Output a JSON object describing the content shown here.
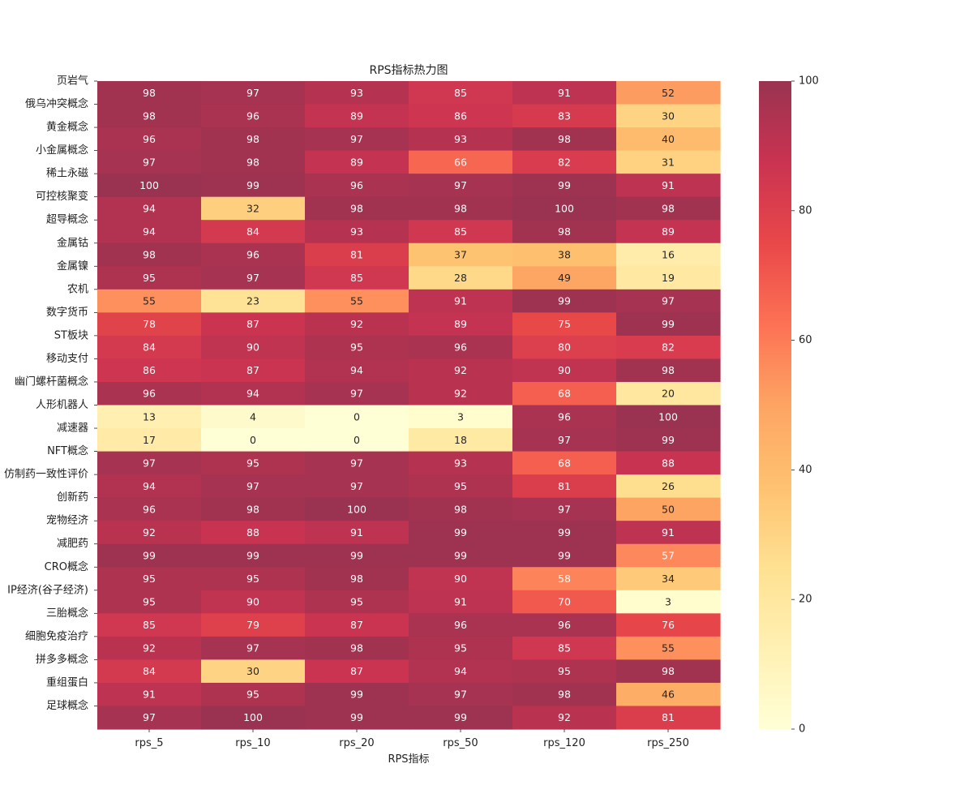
{
  "chart_data": {
    "type": "heatmap",
    "title": "RPS指标热力图",
    "xlabel": "RPS指标",
    "ylabel": "",
    "x_categories": [
      "rps_5",
      "rps_10",
      "rps_20",
      "rps_50",
      "rps_120",
      "rps_250"
    ],
    "y_categories": [
      "页岩气",
      "俄乌冲突概念",
      "黄金概念",
      "小金属概念",
      "稀土永磁",
      "可控核聚变",
      "超导概念",
      "金属钴",
      "金属镍",
      "农机",
      "数字货币",
      "ST板块",
      "移动支付",
      "幽门螺杆菌概念",
      "人形机器人",
      "减速器",
      "NFT概念",
      "仿制药一致性评价",
      "创新药",
      "宠物经济",
      "减肥药",
      "CRO概念",
      "IP经济(谷子经济)",
      "三胎概念",
      "细胞免疫治疗",
      "拼多多概念",
      "重组蛋白",
      "足球概念"
    ],
    "values": [
      [
        98,
        97,
        93,
        85,
        91,
        52
      ],
      [
        98,
        96,
        89,
        86,
        83,
        30
      ],
      [
        96,
        98,
        97,
        93,
        98,
        40
      ],
      [
        97,
        98,
        89,
        66,
        82,
        31
      ],
      [
        100,
        99,
        96,
        97,
        99,
        91
      ],
      [
        94,
        32,
        98,
        98,
        100,
        98
      ],
      [
        94,
        84,
        93,
        85,
        98,
        89
      ],
      [
        98,
        96,
        81,
        37,
        38,
        16
      ],
      [
        95,
        97,
        85,
        28,
        49,
        19
      ],
      [
        55,
        23,
        55,
        91,
        99,
        97
      ],
      [
        78,
        87,
        92,
        89,
        75,
        99
      ],
      [
        84,
        90,
        95,
        96,
        80,
        82
      ],
      [
        86,
        87,
        94,
        92,
        90,
        98
      ],
      [
        96,
        94,
        97,
        92,
        68,
        20
      ],
      [
        13,
        4,
        0,
        3,
        96,
        100
      ],
      [
        17,
        0,
        0,
        18,
        97,
        99
      ],
      [
        97,
        95,
        97,
        93,
        68,
        88
      ],
      [
        94,
        97,
        97,
        95,
        81,
        26
      ],
      [
        96,
        98,
        100,
        98,
        97,
        50
      ],
      [
        92,
        88,
        91,
        99,
        99,
        91
      ],
      [
        99,
        99,
        99,
        99,
        99,
        57
      ],
      [
        95,
        95,
        98,
        90,
        58,
        34
      ],
      [
        95,
        90,
        95,
        91,
        70,
        3
      ],
      [
        85,
        79,
        87,
        96,
        96,
        76
      ],
      [
        92,
        97,
        98,
        95,
        85,
        55
      ],
      [
        84,
        30,
        87,
        94,
        95,
        98
      ],
      [
        91,
        95,
        99,
        97,
        98,
        46
      ],
      [
        97,
        100,
        99,
        99,
        92,
        81
      ]
    ],
    "vmin": 0,
    "vmax": 100,
    "colormap": "YlOrRd",
    "alpha": 0.8,
    "colorbar_ticks": [
      0,
      20,
      40,
      60,
      80,
      100
    ],
    "annotations": true,
    "colorbar": true
  }
}
